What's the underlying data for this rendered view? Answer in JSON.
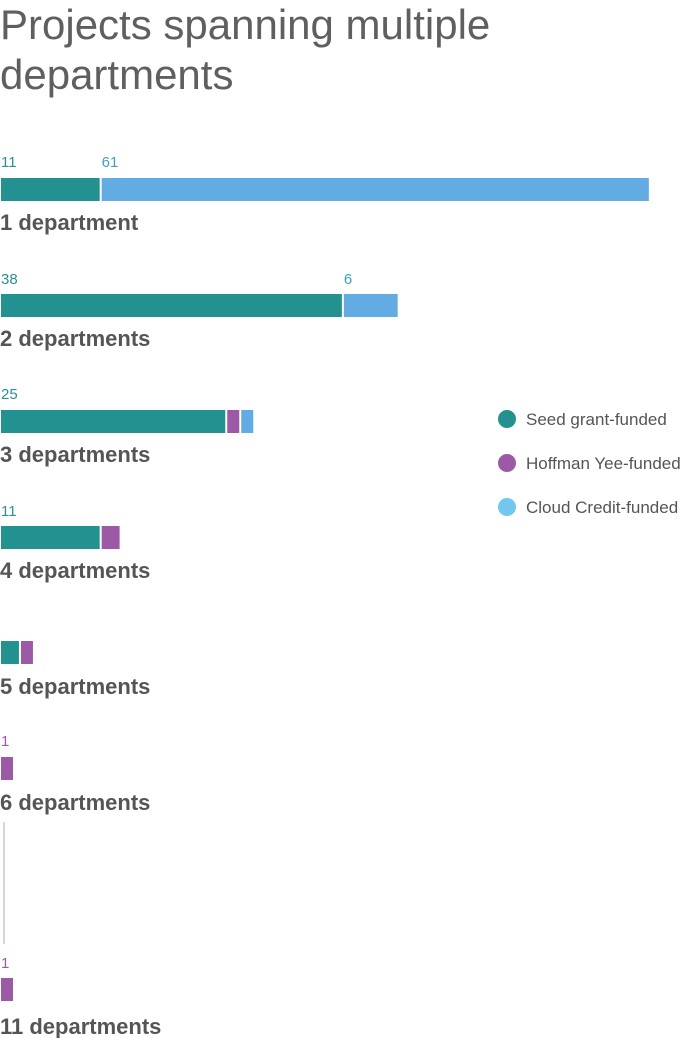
{
  "chart_data": {
    "type": "bar",
    "orientation": "horizontal",
    "stacked": true,
    "title_lines": [
      "Projects spanning multiple",
      "departments"
    ],
    "categories": [
      "1 department",
      "2 departments",
      "3 departments",
      "4 departments",
      "5 departments",
      "6 departments",
      "11 departments"
    ],
    "series": [
      {
        "name": "Seed grant-funded",
        "color": "#22918f",
        "values": [
          11,
          38,
          25,
          11,
          2,
          0,
          0
        ]
      },
      {
        "name": "Hoffman Yee-funded",
        "color": "#9b59a6",
        "values": [
          0,
          0,
          1,
          2,
          1,
          1,
          1
        ]
      },
      {
        "name": "Cloud Credit-funded",
        "color": "#62ace3",
        "values": [
          61,
          6,
          1,
          0,
          0,
          0,
          0
        ]
      }
    ],
    "data_labels": [
      [
        {
          "text": "11",
          "series": 0
        },
        {
          "text": "61",
          "series": 2
        }
      ],
      [
        {
          "text": "38",
          "series": 0
        },
        {
          "text": "6",
          "series": 2
        }
      ],
      [
        {
          "text": "25",
          "series": 0
        }
      ],
      [
        {
          "text": "11",
          "series": 0
        }
      ],
      [],
      [
        {
          "text": "1",
          "series": 1
        }
      ],
      [
        {
          "text": "1",
          "series": 1
        }
      ]
    ],
    "legend_position": "right",
    "legend_marker_colors": [
      "#22918f",
      "#9b59a6",
      "#74c7ec"
    ],
    "axis_break_between": [
      "6 departments",
      "11 departments"
    ],
    "grid": false
  }
}
